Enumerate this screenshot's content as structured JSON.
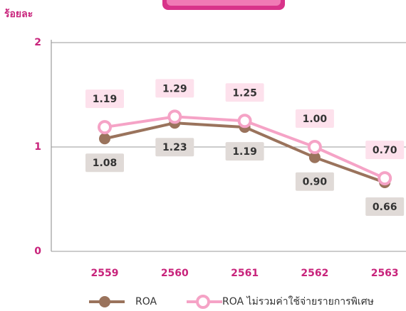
{
  "chart_data": {
    "type": "line",
    "ylabel": "ร้อยละ",
    "categories": [
      "2559",
      "2560",
      "2561",
      "2562",
      "2563"
    ],
    "series": [
      {
        "name": "ROA",
        "color": "#9a735c",
        "values": [
          1.08,
          1.23,
          1.19,
          0.9,
          0.66
        ],
        "value_labels": [
          "1.08",
          "1.23",
          "1.19",
          "0.90",
          "0.66"
        ]
      },
      {
        "name": "ROA ไม่รวมค่าใช้จ่ายรายการพิเศษ",
        "color": "#f5a3c6",
        "values": [
          1.19,
          1.29,
          1.25,
          1.0,
          0.7
        ],
        "value_labels": [
          "1.19",
          "1.29",
          "1.25",
          "1.00",
          "0.70"
        ]
      }
    ],
    "ylim": [
      0,
      2
    ],
    "yticks": [
      0,
      1,
      2
    ],
    "grid": true
  }
}
